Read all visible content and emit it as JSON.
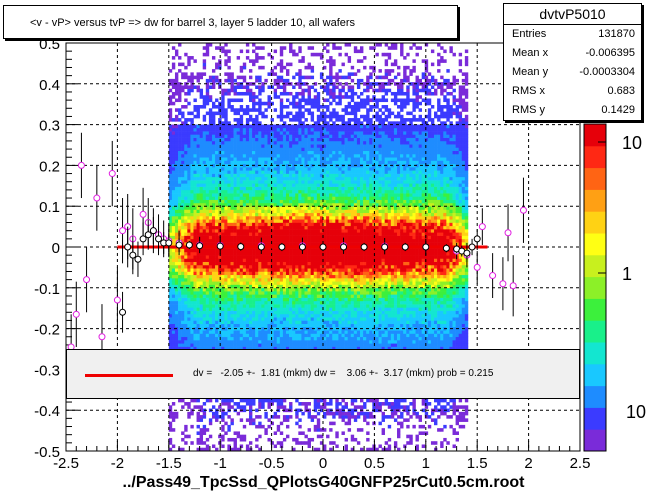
{
  "title": "<v - vP>       versus  tvP =>  dw for barrel 3, layer 5 ladder 10, all wafers",
  "stats": {
    "name": "dvtvP5010",
    "rows": [
      {
        "label": "Entries",
        "value": "131870"
      },
      {
        "label": "Mean x",
        "value": "-0.006395"
      },
      {
        "label": "Mean y",
        "value": "-0.0003304"
      },
      {
        "label": "RMS x",
        "value": "0.683"
      },
      {
        "label": "RMS y",
        "value": "0.1429"
      }
    ]
  },
  "fit": {
    "text": "dv =   -2.05 +-  1.81 (mkm) dw =    3.06 +-  3.17 (mkm) prob = 0.215",
    "color": "#ee0000"
  },
  "xlabel": "../Pass49_TpcSsd_QPlotsG40GNFP25rCut0.5cm.root",
  "chart_data": {
    "type": "heatmap",
    "xlim": [
      -2.5,
      2.5
    ],
    "ylim": [
      -0.5,
      0.5
    ],
    "x_ticks": [
      "-2.5",
      "-2",
      "-1.5",
      "-1",
      "-0.5",
      "0",
      "0.5",
      "1",
      "1.5",
      "2",
      "2.5"
    ],
    "y_ticks": [
      "-0.5",
      "-0.4",
      "-0.3",
      "-0.2",
      "-0.1",
      "0",
      "0.1",
      "0.2",
      "0.3",
      "0.4",
      "0.5"
    ],
    "colorbar_ticks": [
      "1",
      "10"
    ],
    "colorbar_scale": "log",
    "grid": true,
    "band_xrange": [
      -1.5,
      1.4
    ],
    "fit_line": {
      "x": [
        -2.0,
        1.6
      ],
      "y": [
        0.0,
        0.0
      ],
      "color": "#ee0000"
    },
    "profile_black": [
      [
        -1.95,
        -0.16
      ],
      [
        -1.9,
        0.0
      ],
      [
        -1.85,
        -0.02
      ],
      [
        -1.8,
        -0.03
      ],
      [
        -1.75,
        0.02
      ],
      [
        -1.7,
        0.03
      ],
      [
        -1.65,
        0.04
      ],
      [
        -1.6,
        0.02
      ],
      [
        -1.55,
        0.01
      ],
      [
        -1.5,
        0.01
      ],
      [
        -1.4,
        0.005
      ],
      [
        -1.3,
        0.005
      ],
      [
        -1.2,
        0.003
      ],
      [
        -1.0,
        0.002
      ],
      [
        -0.8,
        0.001
      ],
      [
        -0.6,
        0.0
      ],
      [
        -0.4,
        0.0
      ],
      [
        -0.2,
        0.0
      ],
      [
        0.0,
        0.0
      ],
      [
        0.2,
        0.0
      ],
      [
        0.4,
        0.0
      ],
      [
        0.6,
        0.0
      ],
      [
        0.8,
        0.0
      ],
      [
        1.0,
        0.0
      ],
      [
        1.2,
        -0.003
      ],
      [
        1.3,
        -0.005
      ],
      [
        1.35,
        -0.01
      ],
      [
        1.4,
        -0.015
      ],
      [
        1.45,
        0.0
      ],
      [
        1.5,
        0.02
      ]
    ],
    "profile_magenta": [
      [
        -2.45,
        -0.245
      ],
      [
        -2.4,
        -0.165
      ],
      [
        -2.35,
        0.2
      ],
      [
        -2.3,
        -0.08
      ],
      [
        -2.2,
        0.12
      ],
      [
        -2.15,
        -0.22
      ],
      [
        -2.05,
        0.18
      ],
      [
        -2.0,
        -0.13
      ],
      [
        -1.95,
        0.04
      ],
      [
        -1.9,
        0.05
      ],
      [
        -1.85,
        0.02
      ],
      [
        -1.75,
        0.08
      ],
      [
        -1.7,
        0.06
      ],
      [
        -1.65,
        0.04
      ],
      [
        -1.6,
        0.03
      ],
      [
        -1.55,
        0.02
      ],
      [
        -1.5,
        0.015
      ],
      [
        -1.4,
        0.01
      ],
      [
        -1.2,
        0.005
      ],
      [
        -1.0,
        0.004
      ],
      [
        -0.6,
        0.003
      ],
      [
        -0.2,
        0.003
      ],
      [
        0.2,
        0.003
      ],
      [
        0.6,
        0.002
      ],
      [
        1.0,
        0.0
      ],
      [
        1.3,
        -0.01
      ],
      [
        1.4,
        -0.02
      ],
      [
        1.5,
        -0.05
      ],
      [
        1.55,
        0.05
      ],
      [
        1.65,
        -0.07
      ],
      [
        1.75,
        -0.09
      ],
      [
        1.8,
        0.035
      ],
      [
        1.85,
        -0.095
      ],
      [
        1.95,
        0.09
      ]
    ]
  }
}
